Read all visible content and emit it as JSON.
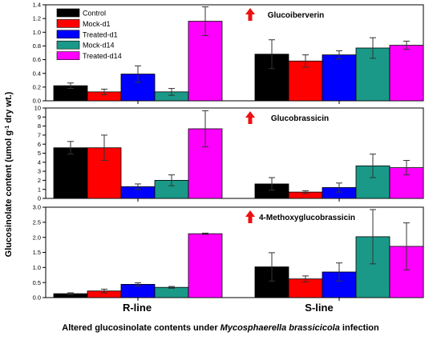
{
  "caption": {
    "prefix": "Altered glucosinolate contents under ",
    "italic": "Mycosphaerella brassicicola",
    "suffix": " infection"
  },
  "ylabel": {
    "main": "Glucosinolate content (umol g",
    "sup": "-1",
    "tail": " dry wt.)"
  },
  "chart_data": [
    {
      "type": "bar",
      "title": "Glucoiberverin",
      "categories": [
        "R-line",
        "S-line"
      ],
      "ylim": [
        0,
        1.4
      ],
      "yticks": [
        "0.0",
        "0.2",
        "0.4",
        "0.6",
        "0.8",
        "1.0",
        "1.2",
        "1.4"
      ],
      "up_arrow": "Treated-d14 (R-line)",
      "series": [
        {
          "name": "Control",
          "color": "#000000",
          "values": [
            0.22,
            0.68
          ],
          "errors": [
            0.04,
            0.21
          ]
        },
        {
          "name": "Mock-d1",
          "color": "#ff0000",
          "values": [
            0.13,
            0.58
          ],
          "errors": [
            0.04,
            0.09
          ]
        },
        {
          "name": "Treated-d1",
          "color": "#0000ff",
          "values": [
            0.39,
            0.67
          ],
          "errors": [
            0.12,
            0.06
          ]
        },
        {
          "name": "Mock-d14",
          "color": "#1a9988",
          "values": [
            0.13,
            0.77
          ],
          "errors": [
            0.05,
            0.15
          ]
        },
        {
          "name": "Treated-d14",
          "color": "#ff00ff",
          "values": [
            1.16,
            0.81
          ],
          "errors": [
            0.21,
            0.06
          ]
        }
      ]
    },
    {
      "type": "bar",
      "title": "Glucobrassicin",
      "categories": [
        "R-line",
        "S-line"
      ],
      "ylim": [
        0,
        10
      ],
      "yticks": [
        "0",
        "1",
        "2",
        "3",
        "4",
        "5",
        "6",
        "7",
        "8",
        "9",
        "10"
      ],
      "up_arrow": "Treated-d14 (R-line)",
      "series": [
        {
          "name": "Control",
          "color": "#000000",
          "values": [
            5.6,
            1.6
          ],
          "errors": [
            0.7,
            0.7
          ]
        },
        {
          "name": "Mock-d1",
          "color": "#ff0000",
          "values": [
            5.6,
            0.7
          ],
          "errors": [
            1.4,
            0.15
          ]
        },
        {
          "name": "Treated-d1",
          "color": "#0000ff",
          "values": [
            1.3,
            1.2
          ],
          "errors": [
            0.3,
            0.5
          ]
        },
        {
          "name": "Mock-d14",
          "color": "#1a9988",
          "values": [
            2.0,
            3.6
          ],
          "errors": [
            0.6,
            1.3
          ]
        },
        {
          "name": "Treated-d14",
          "color": "#ff00ff",
          "values": [
            7.7,
            3.4
          ],
          "errors": [
            2.0,
            0.8
          ]
        }
      ]
    },
    {
      "type": "bar",
      "title": "4-Methoxyglucobrassicin",
      "categories": [
        "R-line",
        "S-line"
      ],
      "ylim": [
        0,
        3.0
      ],
      "yticks": [
        "0.0",
        "0.5",
        "1.0",
        "1.5",
        "2.0",
        "2.5",
        "3.0"
      ],
      "up_arrow": "Treated-d14 (R-line)",
      "series": [
        {
          "name": "Control",
          "color": "#000000",
          "values": [
            0.13,
            1.02
          ],
          "errors": [
            0.03,
            0.47
          ]
        },
        {
          "name": "Mock-d1",
          "color": "#ff0000",
          "values": [
            0.22,
            0.62
          ],
          "errors": [
            0.06,
            0.1
          ]
        },
        {
          "name": "Treated-d1",
          "color": "#0000ff",
          "values": [
            0.44,
            0.85
          ],
          "errors": [
            0.05,
            0.3
          ]
        },
        {
          "name": "Mock-d14",
          "color": "#1a9988",
          "values": [
            0.34,
            2.02
          ],
          "errors": [
            0.03,
            0.9
          ]
        },
        {
          "name": "Treated-d14",
          "color": "#ff00ff",
          "values": [
            2.12,
            1.7
          ],
          "errors": [
            0.02,
            0.78
          ]
        }
      ]
    }
  ],
  "legend": {
    "items": [
      "Control",
      "Mock-d1",
      "Treated-d1",
      "Mock-d14",
      "Treated-d14"
    ],
    "colors": [
      "#000000",
      "#ff0000",
      "#0000ff",
      "#1a9988",
      "#ff00ff"
    ],
    "placement": "top-left of top panel"
  },
  "arrow_color": "#ee1111"
}
